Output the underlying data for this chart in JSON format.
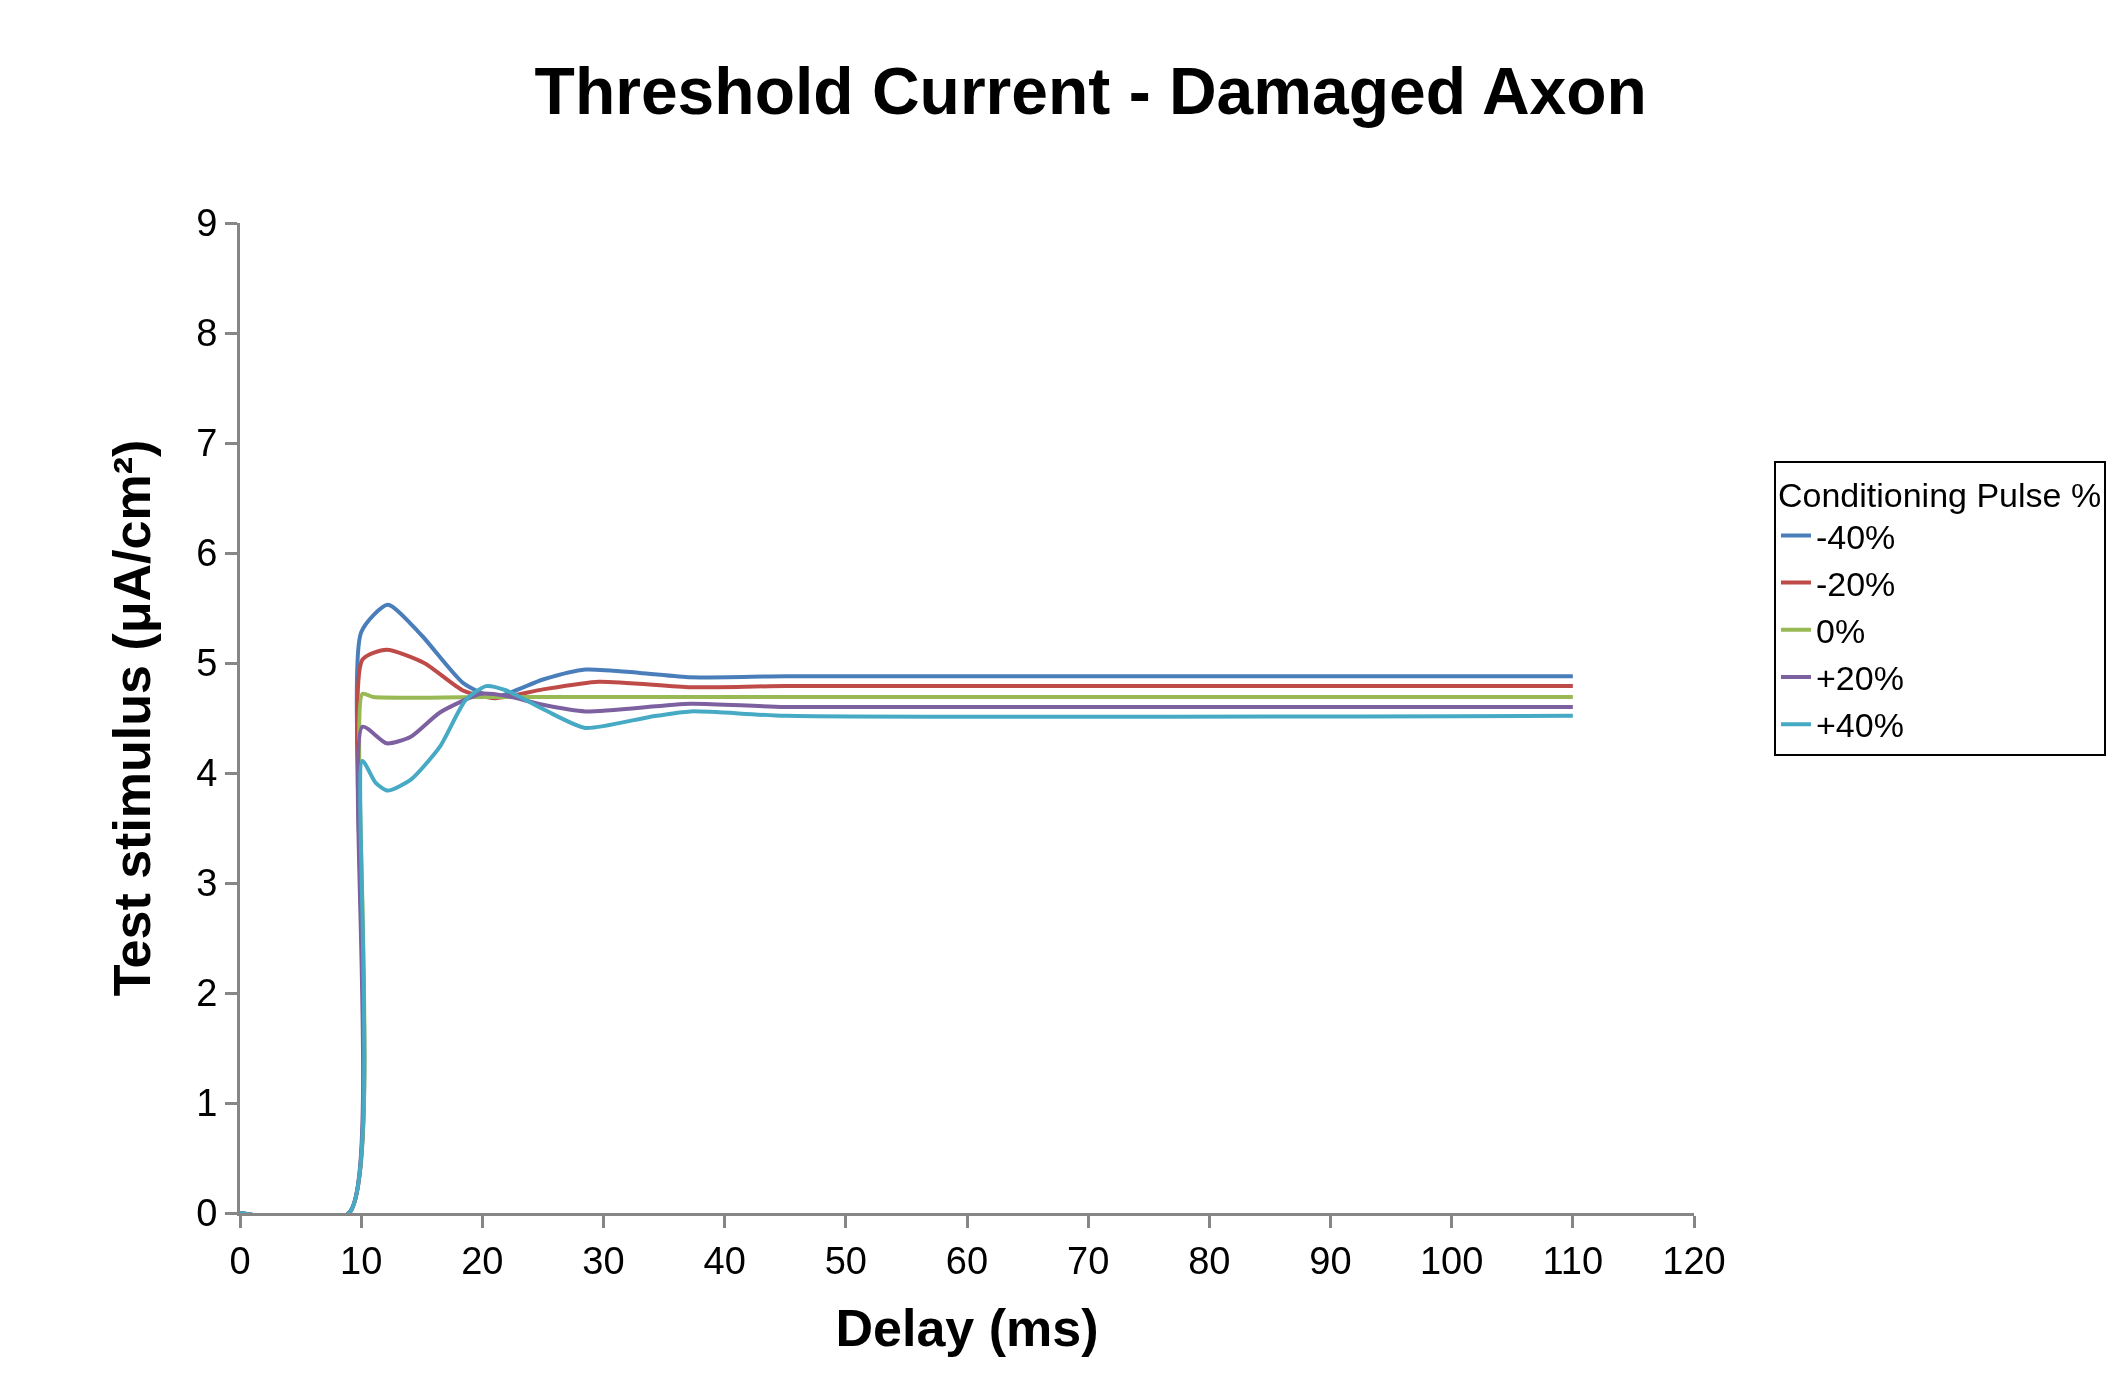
{
  "chart_data": {
    "type": "line",
    "title": "Threshold Current - Damaged Axon",
    "xlabel": "Delay (ms)",
    "ylabel": "Test stimulus (μA/cm²)",
    "legend_title": "Conditioning Pulse %",
    "xlim": [
      0,
      120
    ],
    "xticks": [
      0,
      10,
      20,
      30,
      40,
      50,
      60,
      70,
      80,
      90,
      100,
      110,
      120
    ],
    "ylim": [
      0,
      9
    ],
    "yticks": [
      0,
      1,
      2,
      3,
      4,
      5,
      6,
      7,
      8,
      9
    ],
    "grid": false,
    "legend": "right",
    "marker": "none",
    "line_style": "solid",
    "series": [
      {
        "name": "-40%",
        "color": "#4a7ebb",
        "x": [
          0,
          9,
          10,
          12.2,
          15,
          18.4,
          21,
          25,
          28.5,
          33,
          37.2,
          45,
          60,
          110
        ],
        "values": [
          0,
          0,
          5.28,
          5.53,
          5.25,
          4.82,
          4.69,
          4.85,
          4.94,
          4.91,
          4.87,
          4.88,
          4.88,
          4.88
        ]
      },
      {
        "name": "-20%",
        "color": "#be4b48",
        "x": [
          0,
          9,
          10.1,
          12.1,
          15.2,
          18.4,
          21,
          25,
          29.6,
          37.2,
          45,
          110
        ],
        "values": [
          0,
          0,
          5.03,
          5.12,
          5.0,
          4.75,
          4.68,
          4.76,
          4.83,
          4.78,
          4.79,
          4.79
        ]
      },
      {
        "name": "0%",
        "color": "#98b954",
        "x": [
          0,
          9,
          10.1,
          11,
          20,
          110
        ],
        "values": [
          0,
          0,
          4.72,
          4.69,
          4.69,
          4.69
        ]
      },
      {
        "name": "+20%",
        "color": "#7d60a0",
        "x": [
          0,
          9,
          10.1,
          12.1,
          14.1,
          16.5,
          19.9,
          22,
          25,
          28.5,
          37.2,
          45,
          110
        ],
        "values": [
          0,
          0,
          4.42,
          4.27,
          4.33,
          4.55,
          4.72,
          4.7,
          4.62,
          4.56,
          4.63,
          4.6,
          4.6
        ]
      },
      {
        "name": "+40%",
        "color": "#46aac5",
        "x": [
          0,
          9,
          10.1,
          11.2,
          12.2,
          14.1,
          16.5,
          18.6,
          20.3,
          22,
          25.2,
          28.5,
          33.8,
          37.2,
          45,
          110
        ],
        "values": [
          0,
          0,
          4.11,
          3.91,
          3.84,
          3.94,
          4.24,
          4.66,
          4.79,
          4.75,
          4.57,
          4.41,
          4.51,
          4.56,
          4.52,
          4.52
        ]
      }
    ]
  }
}
